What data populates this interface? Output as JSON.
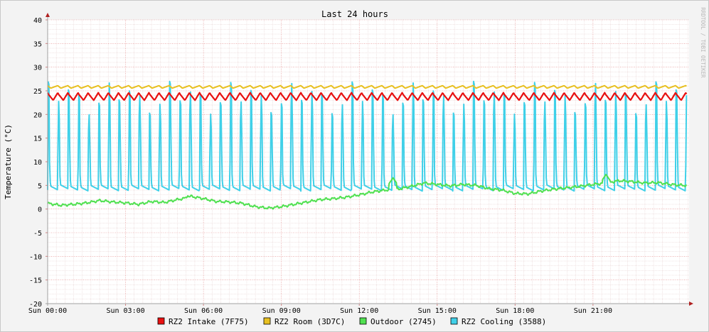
{
  "chart_data": {
    "type": "line",
    "title": "Last 24 hours",
    "ylabel": "Temperature (°C)",
    "watermark": "RRDTOOL / TOBI OETIKER",
    "ylim": [
      -20,
      40
    ],
    "xlim_hours": [
      0,
      24.7
    ],
    "yticks": [
      40,
      35,
      30,
      25,
      20,
      15,
      10,
      5,
      0,
      -5,
      -10,
      -15,
      -20
    ],
    "xticks": [
      {
        "hour": 0,
        "label": "Sun 00:00"
      },
      {
        "hour": 3,
        "label": "Sun 03:00"
      },
      {
        "hour": 6,
        "label": "Sun 06:00"
      },
      {
        "hour": 9,
        "label": "Sun 09:00"
      },
      {
        "hour": 12,
        "label": "Sun 12:00"
      },
      {
        "hour": 15,
        "label": "Sun 15:00"
      },
      {
        "hour": 18,
        "label": "Sun 18:00"
      },
      {
        "hour": 21,
        "label": "Sun 21:00"
      }
    ],
    "grid": true,
    "legend_position": "bottom",
    "series": [
      {
        "name": "RZ2 Intake (7F75)",
        "color": "#e81010",
        "cycle_hours": 0.39,
        "approx_range": [
          23,
          24.6
        ]
      },
      {
        "name": "RZ2 Room (3D7C)",
        "color": "#e8c020",
        "cycle_hours": 0.39,
        "approx_range": [
          25,
          26.1
        ]
      },
      {
        "name": "Outdoor (2745)",
        "color": "#50e050",
        "x": [
          0,
          0.5,
          1,
          1.5,
          2,
          2.5,
          3,
          3.5,
          4,
          4.5,
          5,
          5.3,
          5.5,
          6,
          6.5,
          7,
          7.5,
          8,
          8.5,
          9,
          9.5,
          10,
          10.5,
          11,
          11.5,
          12,
          12.5,
          13,
          13.5,
          14,
          14.5,
          15,
          15.5,
          16,
          16.5,
          17,
          17.5,
          18,
          18.5,
          19,
          19.5,
          20,
          20.5,
          21,
          21.5,
          22,
          22.5,
          23,
          23.5,
          24,
          24.5
        ],
        "values": [
          1.2,
          0.8,
          1,
          1.3,
          1.8,
          1.5,
          1.3,
          1,
          1.6,
          1.4,
          2,
          2.3,
          2.7,
          2.2,
          1.6,
          1.5,
          1.2,
          0.5,
          0.2,
          0.5,
          1,
          1.5,
          2,
          2.2,
          2.5,
          3,
          3.6,
          4,
          4.2,
          4.8,
          5.5,
          5.2,
          4.9,
          5.2,
          5,
          4.3,
          4,
          3.3,
          3.2,
          3.8,
          4.2,
          4.5,
          4.8,
          5.2,
          5.5,
          6,
          5.8,
          5.5,
          5.6,
          5.2,
          5
        ],
        "spikes": [
          {
            "hour": 5.4,
            "value": 2.8
          },
          {
            "hour": 13.3,
            "value": 6.6
          },
          {
            "hour": 21.5,
            "value": 7.3
          }
        ]
      },
      {
        "name": "RZ2 Cooling (3588)",
        "color": "#40d0e8",
        "cycle_hours": 0.39,
        "approx_range": [
          3.7,
          27
        ]
      }
    ],
    "legend": [
      {
        "label": "RZ2 Intake (7F75)",
        "color": "#e81010"
      },
      {
        "label": "RZ2 Room (3D7C)",
        "color": "#e8c020"
      },
      {
        "label": "Outdoor (2745)",
        "color": "#50e050"
      },
      {
        "label": "RZ2 Cooling (3588)",
        "color": "#40d0e8"
      }
    ]
  }
}
